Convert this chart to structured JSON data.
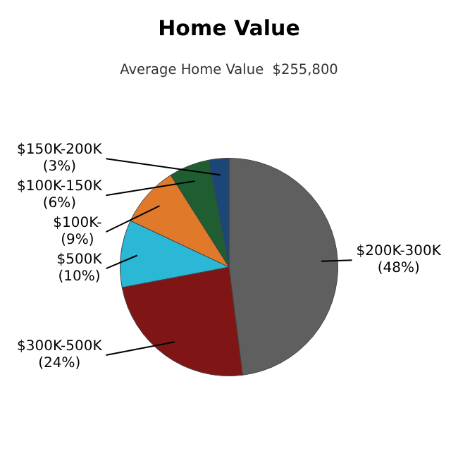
{
  "chart_data": {
    "type": "pie",
    "title": "Home Value",
    "subtitle": "Average Home Value  $255,800",
    "categories": [
      "$200K-300K",
      "$300K-500K",
      "$500K",
      "$100K-",
      "$100K-150K",
      "$150K-200K"
    ],
    "values": [
      48,
      24,
      10,
      9,
      6,
      3
    ],
    "value_labels": [
      "(48%)",
      "(24%)",
      "(10%)",
      "(9%)",
      "(6%)",
      "(3%)"
    ],
    "colors": [
      "#5f5f5f",
      "#7f1515",
      "#2bb8d6",
      "#e07a2a",
      "#1e5e30",
      "#1b4778"
    ],
    "legend": false
  }
}
